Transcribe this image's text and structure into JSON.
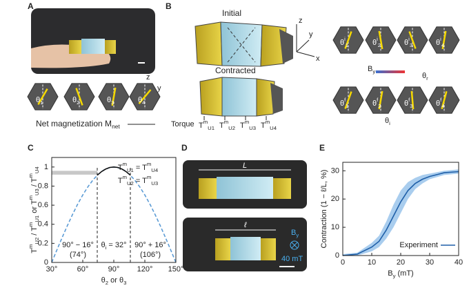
{
  "panel_labels": [
    "A",
    "B",
    "C",
    "D",
    "E"
  ],
  "panel_a": {
    "theta_labels": [
      "θ_1",
      "θ_2",
      "θ_3",
      "θ_4"
    ],
    "axes": [
      "z",
      "y"
    ],
    "caption": "Net magnetization M_net"
  },
  "panel_b": {
    "initial": "Initial",
    "contracted": "Contracted",
    "axes": [
      "z",
      "y",
      "x"
    ],
    "torque": "Torque",
    "torque_labels": [
      "T^m_U1",
      "T^m_U2",
      "T^m_U3",
      "T^m_U4"
    ],
    "theta_initial": [
      "θ^i_1",
      "θ^i_2",
      "θ^i_3",
      "θ^i_4"
    ],
    "theta_final": [
      "θ^f_1",
      "θ^f_2",
      "θ^f_3",
      "θ^f_4"
    ],
    "field": "B_y",
    "theta_r": "θ_r",
    "theta_i": "θ_i"
  },
  "panel_d": {
    "length": "L",
    "contracted_length": "ℓ",
    "field": "B_y",
    "field_value": "40 mT"
  },
  "chart_data": [
    {
      "type": "line",
      "ylabel": "T^m_U2 / T^m_U1 or T^m_U3 / T^m_U4",
      "xlabel": "θ_2 or θ_3",
      "xlim": [
        30,
        150
      ],
      "ylim": [
        0,
        1.1
      ],
      "xticks": [
        {
          "value": 30,
          "label": "30°"
        },
        {
          "value": 60,
          "label": "60°"
        },
        {
          "value": 90,
          "label": "90°"
        },
        {
          "value": 120,
          "label": "120°"
        },
        {
          "value": 150,
          "label": "150°"
        }
      ],
      "yticks": [
        0,
        0.2,
        0.4,
        0.6,
        0.8,
        1
      ],
      "series": [
        {
          "color": "#5b9bd5",
          "dashed": true,
          "x": [
            30,
            35,
            40,
            45,
            50,
            55,
            60,
            65,
            70,
            75,
            80,
            85,
            90,
            95,
            100,
            105,
            110,
            115,
            120,
            125,
            130,
            135,
            140,
            145,
            150
          ],
          "values": [
            0,
            0.131,
            0.259,
            0.383,
            0.5,
            0.609,
            0.707,
            0.793,
            0.866,
            0.924,
            0.966,
            0.991,
            1,
            0.991,
            0.966,
            0.924,
            0.866,
            0.793,
            0.707,
            0.609,
            0.5,
            0.383,
            0.259,
            0.131,
            0
          ]
        },
        {
          "color": "#111111",
          "dashed": false,
          "x": [
            74,
            78,
            82,
            86,
            90,
            94,
            98,
            102,
            106
          ],
          "values": [
            0.914,
            0.951,
            0.978,
            0.995,
            1,
            0.995,
            0.978,
            0.951,
            0.914
          ]
        }
      ],
      "shaded_band": {
        "x": [
          30,
          74
        ],
        "y": [
          0.92,
          0.96
        ],
        "color": "#c8c8c8"
      },
      "vlines": [
        74,
        106
      ],
      "annotations": [
        "T^m_U1 = T^m_U4",
        "T^m_U2 = T^m_U3",
        "90° − 16°",
        "(74°)",
        "θ_i = 32°",
        "90° + 16°",
        "(106°)"
      ]
    },
    {
      "type": "line",
      "ylabel": "Contraction (1 − ℓ/L, %)",
      "xlabel": "B_y (mT)",
      "xlim": [
        0,
        40
      ],
      "ylim": [
        0,
        33
      ],
      "xticks": [
        0,
        10,
        20,
        30,
        40
      ],
      "yticks": [
        0,
        10,
        20,
        30
      ],
      "series": [
        {
          "name": "Experiment",
          "color": "#1f5fa8",
          "band_color": "#a9cdee",
          "x": [
            0,
            5,
            10,
            12.5,
            15,
            17.5,
            20,
            22.5,
            25,
            27.5,
            30,
            35,
            40
          ],
          "values": [
            0,
            0.5,
            3,
            5,
            9,
            14,
            19,
            23,
            25.5,
            27,
            28,
            29.3,
            29.7
          ],
          "lower": [
            0,
            0,
            1.5,
            3,
            6,
            10,
            15,
            20,
            23.5,
            25.5,
            27,
            28.5,
            29
          ],
          "upper": [
            0.5,
            1,
            4.5,
            7,
            12,
            18,
            23,
            26,
            27.5,
            28.5,
            29,
            30,
            30.5
          ]
        }
      ]
    }
  ]
}
